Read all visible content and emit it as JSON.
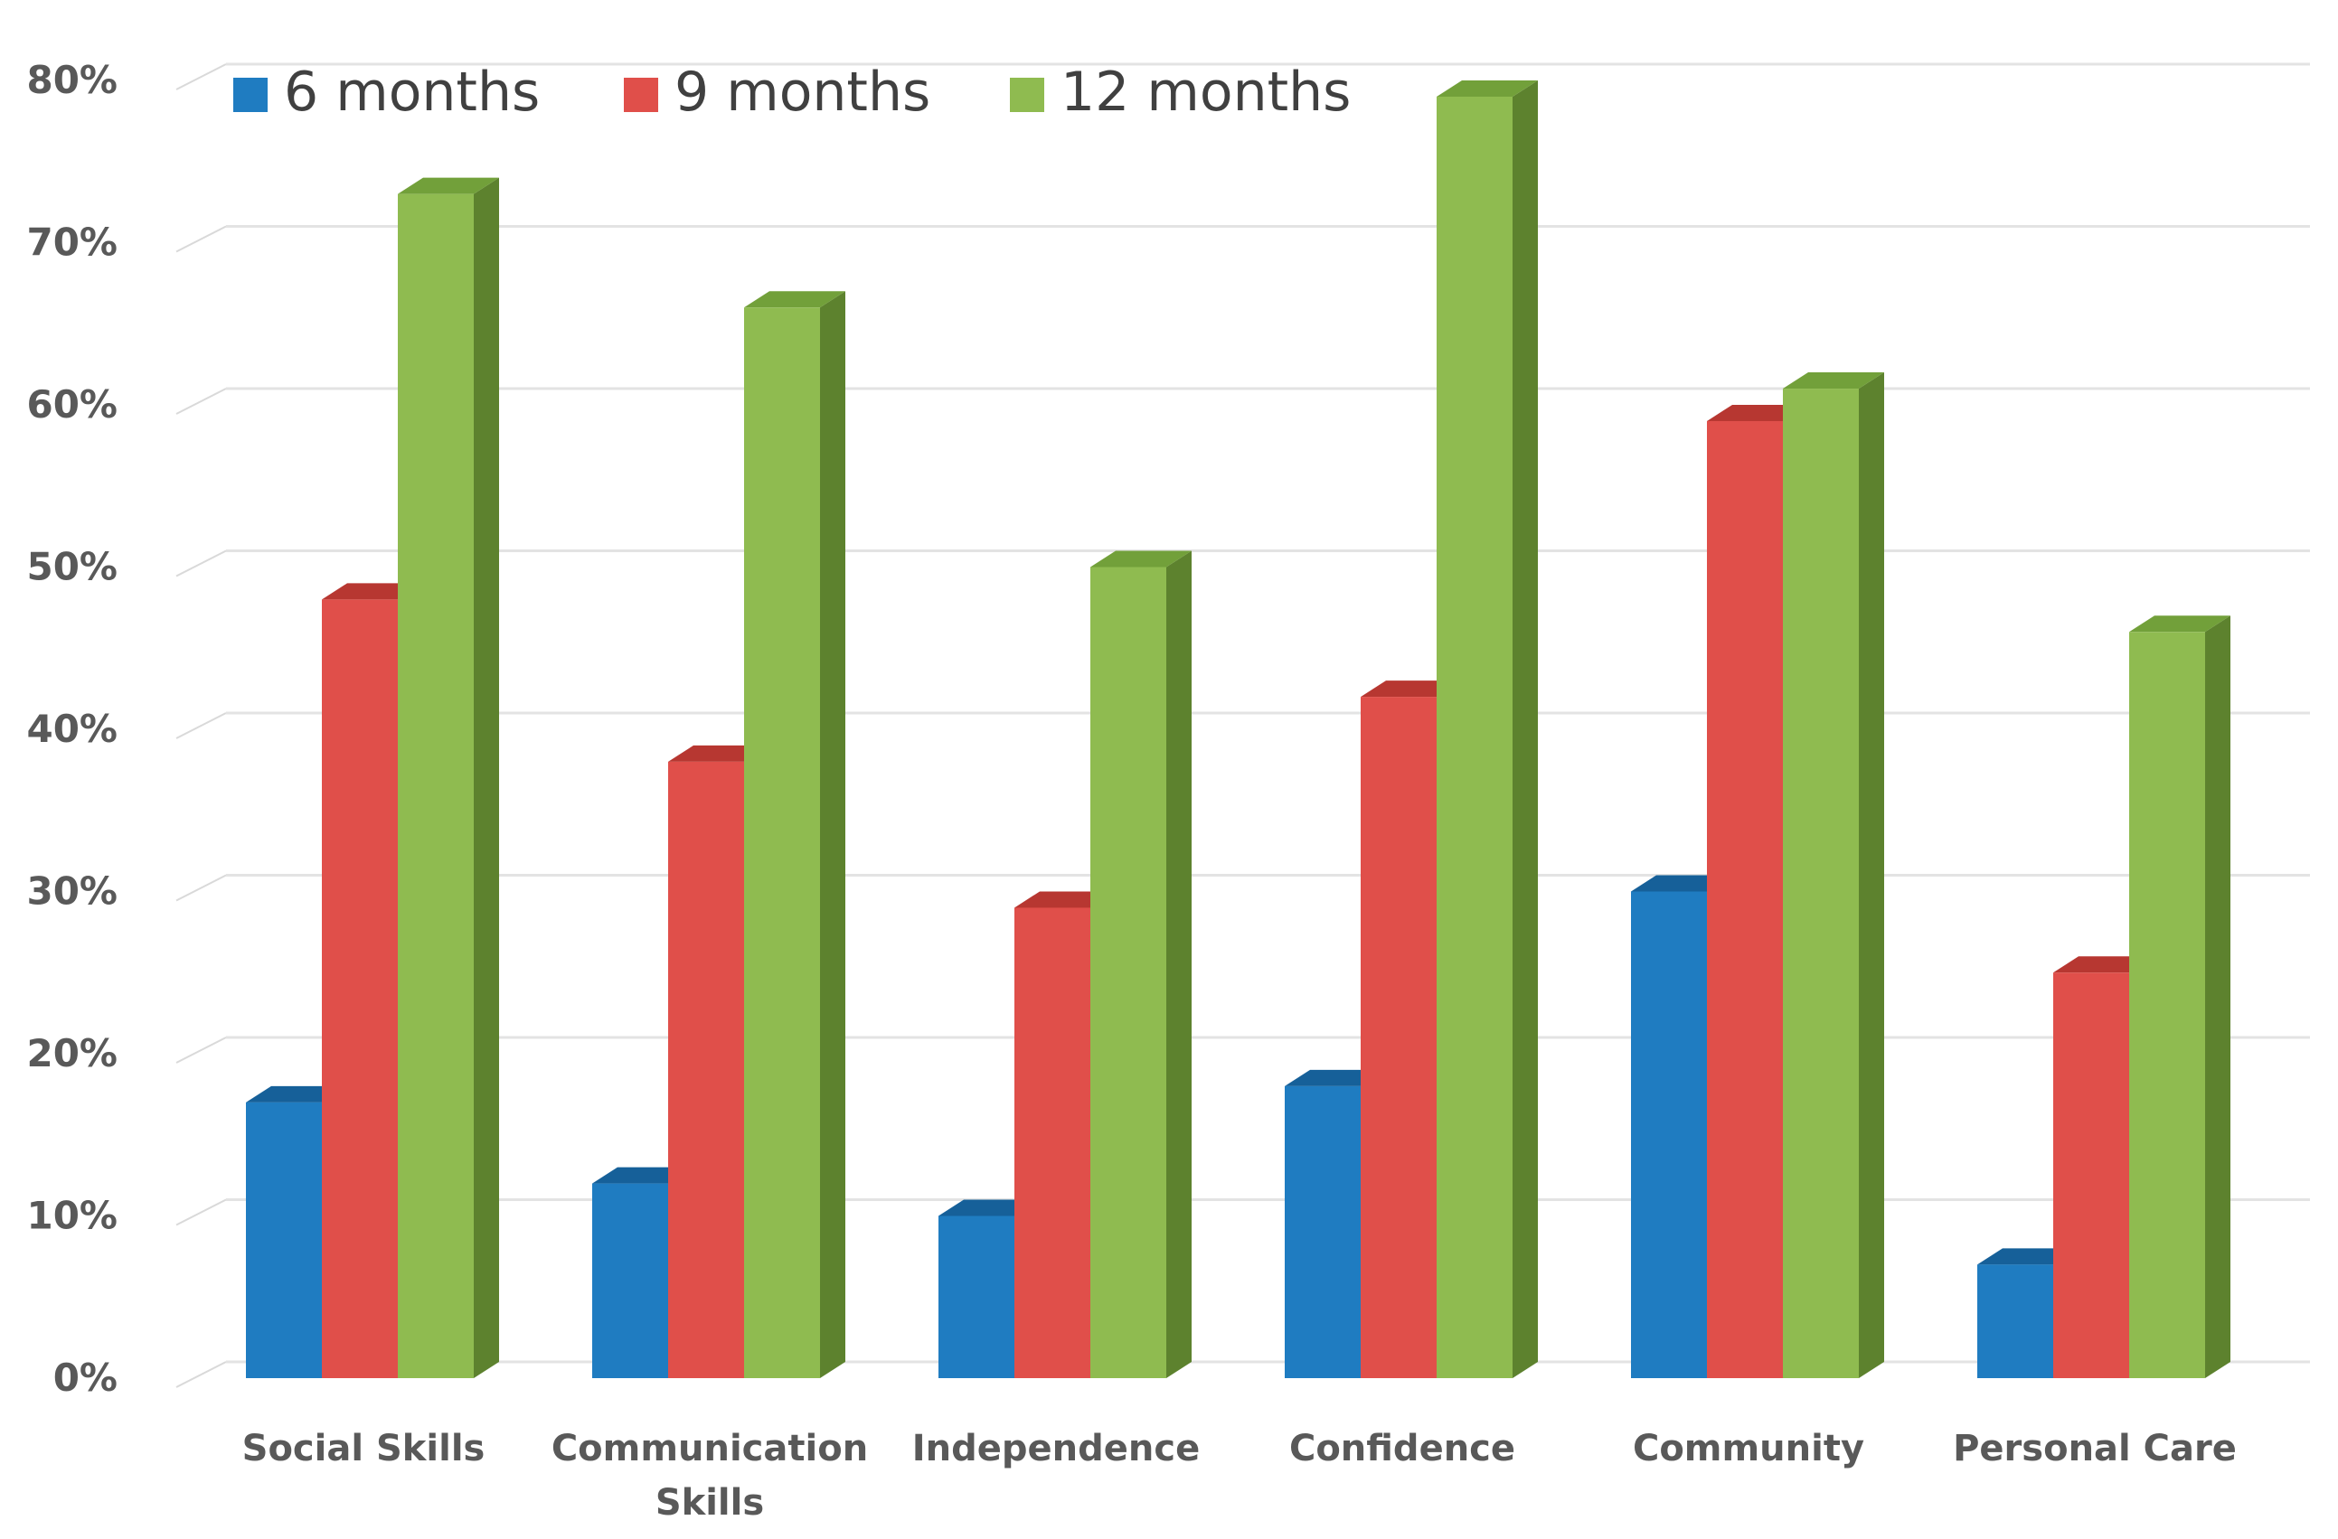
{
  "chart_data": {
    "type": "bar",
    "style": "3d-clustered-column",
    "title": "",
    "xlabel": "",
    "ylabel": "",
    "ylim": [
      0,
      80
    ],
    "yticks": [
      0,
      10,
      20,
      30,
      40,
      50,
      60,
      70,
      80
    ],
    "ytick_labels": [
      "0%",
      "10%",
      "20%",
      "30%",
      "40%",
      "50%",
      "60%",
      "70%",
      "80%"
    ],
    "grid": true,
    "legend_position": "top-left",
    "categories": [
      [
        "Social Skills"
      ],
      [
        "Communication",
        "Skills"
      ],
      [
        "Independence"
      ],
      [
        "Confidence"
      ],
      [
        "Community"
      ],
      [
        "Personal Care"
      ]
    ],
    "series": [
      {
        "name": "6 months",
        "color": "#1f7cc1",
        "top_color": "#166099",
        "side_color": "#125080",
        "values": [
          17,
          12,
          10,
          18,
          30,
          7
        ]
      },
      {
        "name": "9 months",
        "color": "#e04f4a",
        "top_color": "#b73731",
        "side_color": "#9c2c27",
        "values": [
          48,
          38,
          29,
          42,
          59,
          25
        ]
      },
      {
        "name": "12 months",
        "color": "#8fbb50",
        "top_color": "#72a03a",
        "side_color": "#5d822e",
        "values": [
          73,
          66,
          50,
          79,
          61,
          46
        ]
      }
    ]
  }
}
